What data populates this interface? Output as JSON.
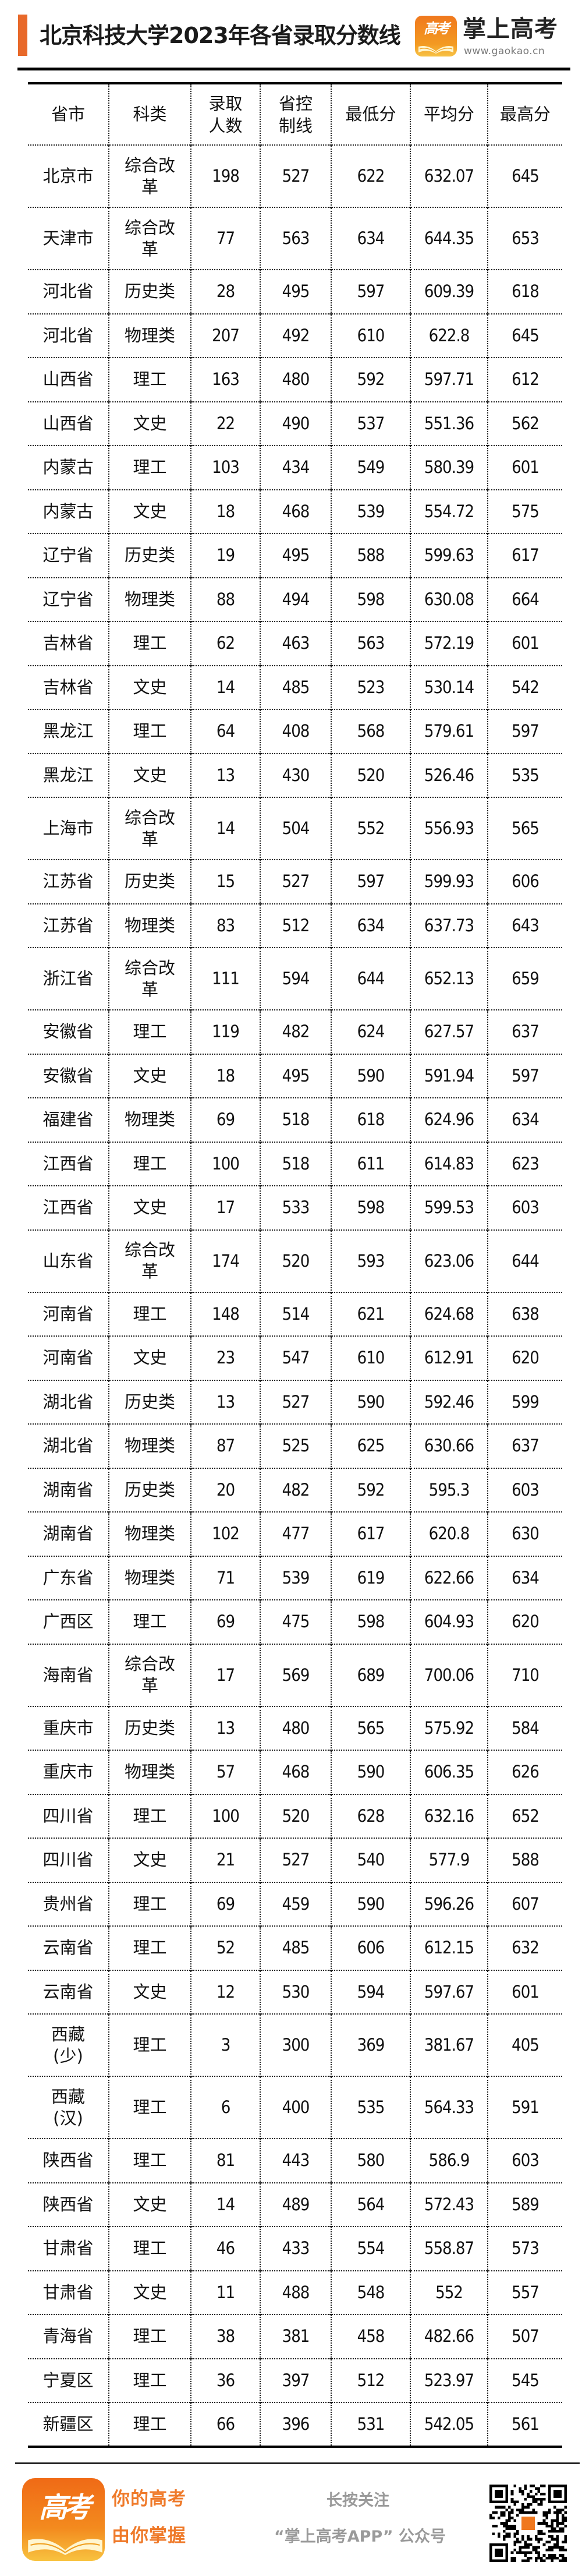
{
  "header": {
    "title": "北京科技大学2023年各省录取分数线",
    "brand_name": "掌上高考",
    "brand_url": "www.gaokao.cn",
    "brand_logo_text": "高考",
    "accent_color": "#e8692a"
  },
  "table": {
    "columns": [
      "省市",
      "科类",
      "录取人数",
      "省控制线",
      "最低分",
      "平均分",
      "最高分"
    ],
    "rows": [
      [
        "北京市",
        "综合改革",
        "198",
        "527",
        "622",
        "632.07",
        "645"
      ],
      [
        "天津市",
        "综合改革",
        "77",
        "563",
        "634",
        "644.35",
        "653"
      ],
      [
        "河北省",
        "历史类",
        "28",
        "495",
        "597",
        "609.39",
        "618"
      ],
      [
        "河北省",
        "物理类",
        "207",
        "492",
        "610",
        "622.8",
        "645"
      ],
      [
        "山西省",
        "理工",
        "163",
        "480",
        "592",
        "597.71",
        "612"
      ],
      [
        "山西省",
        "文史",
        "22",
        "490",
        "537",
        "551.36",
        "562"
      ],
      [
        "内蒙古",
        "理工",
        "103",
        "434",
        "549",
        "580.39",
        "601"
      ],
      [
        "内蒙古",
        "文史",
        "18",
        "468",
        "539",
        "554.72",
        "575"
      ],
      [
        "辽宁省",
        "历史类",
        "19",
        "495",
        "588",
        "599.63",
        "617"
      ],
      [
        "辽宁省",
        "物理类",
        "88",
        "494",
        "598",
        "630.08",
        "664"
      ],
      [
        "吉林省",
        "理工",
        "62",
        "463",
        "563",
        "572.19",
        "601"
      ],
      [
        "吉林省",
        "文史",
        "14",
        "485",
        "523",
        "530.14",
        "542"
      ],
      [
        "黑龙江",
        "理工",
        "64",
        "408",
        "568",
        "579.61",
        "597"
      ],
      [
        "黑龙江",
        "文史",
        "13",
        "430",
        "520",
        "526.46",
        "535"
      ],
      [
        "上海市",
        "综合改革",
        "14",
        "504",
        "552",
        "556.93",
        "565"
      ],
      [
        "江苏省",
        "历史类",
        "15",
        "527",
        "597",
        "599.93",
        "606"
      ],
      [
        "江苏省",
        "物理类",
        "83",
        "512",
        "634",
        "637.73",
        "643"
      ],
      [
        "浙江省",
        "综合改革",
        "111",
        "594",
        "644",
        "652.13",
        "659"
      ],
      [
        "安徽省",
        "理工",
        "119",
        "482",
        "624",
        "627.57",
        "637"
      ],
      [
        "安徽省",
        "文史",
        "18",
        "495",
        "590",
        "591.94",
        "597"
      ],
      [
        "福建省",
        "物理类",
        "69",
        "518",
        "618",
        "624.96",
        "634"
      ],
      [
        "江西省",
        "理工",
        "100",
        "518",
        "611",
        "614.83",
        "623"
      ],
      [
        "江西省",
        "文史",
        "17",
        "533",
        "598",
        "599.53",
        "603"
      ],
      [
        "山东省",
        "综合改革",
        "174",
        "520",
        "593",
        "623.06",
        "644"
      ],
      [
        "河南省",
        "理工",
        "148",
        "514",
        "621",
        "624.68",
        "638"
      ],
      [
        "河南省",
        "文史",
        "23",
        "547",
        "610",
        "612.91",
        "620"
      ],
      [
        "湖北省",
        "历史类",
        "13",
        "527",
        "590",
        "592.46",
        "599"
      ],
      [
        "湖北省",
        "物理类",
        "87",
        "525",
        "625",
        "630.66",
        "637"
      ],
      [
        "湖南省",
        "历史类",
        "20",
        "482",
        "592",
        "595.3",
        "603"
      ],
      [
        "湖南省",
        "物理类",
        "102",
        "477",
        "617",
        "620.8",
        "630"
      ],
      [
        "广东省",
        "物理类",
        "71",
        "539",
        "619",
        "622.66",
        "634"
      ],
      [
        "广西区",
        "理工",
        "69",
        "475",
        "598",
        "604.93",
        "620"
      ],
      [
        "海南省",
        "综合改革",
        "17",
        "569",
        "689",
        "700.06",
        "710"
      ],
      [
        "重庆市",
        "历史类",
        "13",
        "480",
        "565",
        "575.92",
        "584"
      ],
      [
        "重庆市",
        "物理类",
        "57",
        "468",
        "590",
        "606.35",
        "626"
      ],
      [
        "四川省",
        "理工",
        "100",
        "520",
        "628",
        "632.16",
        "652"
      ],
      [
        "四川省",
        "文史",
        "21",
        "527",
        "540",
        "577.9",
        "588"
      ],
      [
        "贵州省",
        "理工",
        "69",
        "459",
        "590",
        "596.26",
        "607"
      ],
      [
        "云南省",
        "理工",
        "52",
        "485",
        "606",
        "612.15",
        "632"
      ],
      [
        "云南省",
        "文史",
        "12",
        "530",
        "594",
        "597.67",
        "601"
      ],
      [
        "西藏\n(少)",
        "理工",
        "3",
        "300",
        "369",
        "381.67",
        "405"
      ],
      [
        "西藏\n(汉)",
        "理工",
        "6",
        "400",
        "535",
        "564.33",
        "591"
      ],
      [
        "陕西省",
        "理工",
        "81",
        "443",
        "580",
        "586.9",
        "603"
      ],
      [
        "陕西省",
        "文史",
        "14",
        "489",
        "564",
        "572.43",
        "589"
      ],
      [
        "甘肃省",
        "理工",
        "46",
        "433",
        "554",
        "558.87",
        "573"
      ],
      [
        "甘肃省",
        "文史",
        "11",
        "488",
        "548",
        "552",
        "557"
      ],
      [
        "青海省",
        "理工",
        "38",
        "381",
        "458",
        "482.66",
        "507"
      ],
      [
        "宁夏区",
        "理工",
        "36",
        "397",
        "512",
        "523.97",
        "545"
      ],
      [
        "新疆区",
        "理工",
        "66",
        "396",
        "531",
        "542.05",
        "561"
      ]
    ]
  },
  "footer": {
    "slogan_line1": "你的高考",
    "slogan_line2": "由你掌握",
    "follow_line1": "长按关注",
    "follow_line2": "“掌上高考APP” 公众号",
    "logo_text": "高考",
    "slogan_color": "#ef7a2a"
  }
}
